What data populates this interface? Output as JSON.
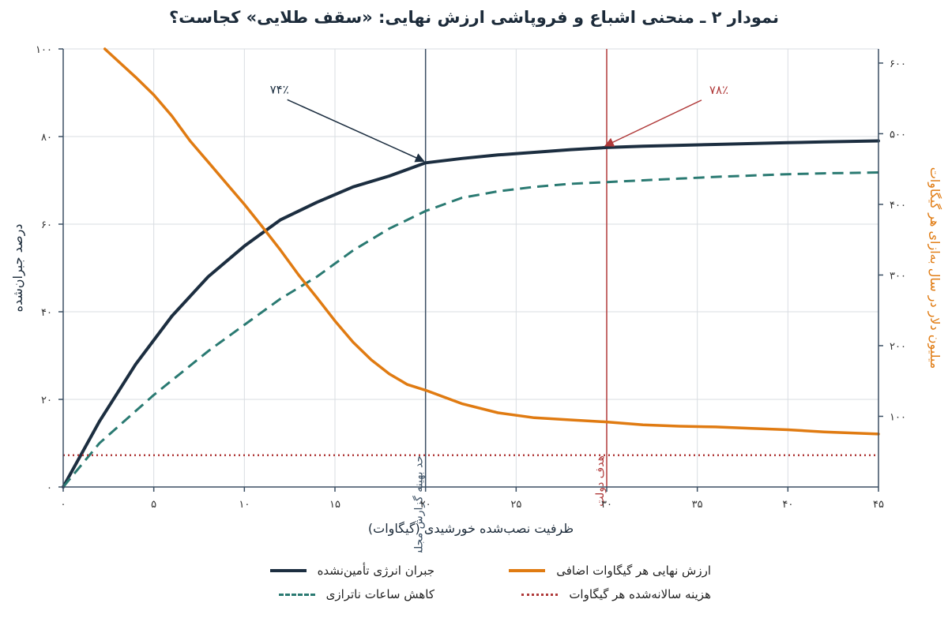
{
  "title": "نمودار ۲ ـ منحنی اشباع و فروپاشی ارزش نهایی: «سقف طلایی» کجاست؟",
  "colors": {
    "navy": "#1c2e40",
    "teal": "#2a7a72",
    "orange": "#e07b12",
    "red": "#b03a3a",
    "ref_line": "#3b4f63",
    "grid": "#d9dde2"
  },
  "chart_data": {
    "type": "line",
    "xlabel": "ظرفیت نصب‌شده خورشیدی (گیگاوات)",
    "ylabel_left": "درصد جبران‌شده",
    "ylabel_right": "میلیون دلار در سال به‌ازای هر گیگاوات",
    "xlim": [
      0,
      45
    ],
    "ylim_left": [
      0,
      100
    ],
    "ylim_right": [
      0,
      620
    ],
    "x_ticks": [
      0,
      5,
      10,
      15,
      20,
      25,
      30,
      35,
      40,
      45
    ],
    "x_tick_labels": [
      "۰",
      "۵",
      "۱۰",
      "۱۵",
      "۲۰",
      "۲۵",
      "۳۰",
      "۳۵",
      "۴۰",
      "۴۵"
    ],
    "y_left_ticks": [
      0,
      20,
      40,
      60,
      80,
      100
    ],
    "y_left_tick_labels": [
      "۰",
      "۲۰",
      "۴۰",
      "۶۰",
      "۸۰",
      "۱۰۰"
    ],
    "y_right_ticks": [
      100,
      200,
      300,
      400,
      500,
      600
    ],
    "y_right_tick_labels": [
      "۱۰۰",
      "۲۰۰",
      "۳۰۰",
      "۴۰۰",
      "۵۰۰",
      "۶۰۰"
    ],
    "grid": true,
    "series": [
      {
        "name": "جبران انرژی تأمین‌نشده",
        "axis": "left",
        "style": "solid",
        "color": "#1c2e40",
        "points": [
          [
            0,
            0
          ],
          [
            2,
            15
          ],
          [
            4,
            28
          ],
          [
            6,
            39
          ],
          [
            8,
            48
          ],
          [
            10,
            55
          ],
          [
            12,
            61
          ],
          [
            14,
            65
          ],
          [
            16,
            68.5
          ],
          [
            18,
            71
          ],
          [
            20,
            74
          ],
          [
            22,
            75
          ],
          [
            24,
            75.8
          ],
          [
            26,
            76.4
          ],
          [
            28,
            77
          ],
          [
            30,
            77.5
          ],
          [
            32,
            77.8
          ],
          [
            34,
            78
          ],
          [
            36,
            78.2
          ],
          [
            38,
            78.4
          ],
          [
            40,
            78.6
          ],
          [
            42,
            78.8
          ],
          [
            45,
            79
          ]
        ]
      },
      {
        "name": "کاهش ساعات ناترازی",
        "axis": "left",
        "style": "dashed",
        "color": "#2a7a72",
        "points": [
          [
            0,
            0
          ],
          [
            2,
            10
          ],
          [
            5,
            21
          ],
          [
            8,
            31
          ],
          [
            10,
            37
          ],
          [
            12,
            43
          ],
          [
            14,
            48
          ],
          [
            16,
            54
          ],
          [
            18,
            59
          ],
          [
            20,
            63
          ],
          [
            22,
            66
          ],
          [
            24,
            67.5
          ],
          [
            26,
            68.5
          ],
          [
            28,
            69.2
          ],
          [
            30,
            69.6
          ],
          [
            32,
            70
          ],
          [
            34,
            70.4
          ],
          [
            36,
            70.8
          ],
          [
            38,
            71.1
          ],
          [
            40,
            71.4
          ],
          [
            42,
            71.6
          ],
          [
            45,
            71.8
          ]
        ]
      },
      {
        "name": "ارزش نهایی هر گیگاوات اضافی",
        "axis": "right",
        "style": "solid",
        "color": "#e07b12",
        "points": [
          [
            2.3,
            620
          ],
          [
            4,
            580
          ],
          [
            5,
            555
          ],
          [
            6,
            525
          ],
          [
            7,
            490
          ],
          [
            8,
            460
          ],
          [
            9,
            430
          ],
          [
            10,
            400
          ],
          [
            11,
            368
          ],
          [
            12,
            335
          ],
          [
            13,
            300
          ],
          [
            14,
            268
          ],
          [
            15,
            235
          ],
          [
            16,
            205
          ],
          [
            17,
            180
          ],
          [
            18,
            160
          ],
          [
            19,
            145
          ],
          [
            20,
            137
          ],
          [
            22,
            118
          ],
          [
            24,
            105
          ],
          [
            26,
            98
          ],
          [
            28,
            95
          ],
          [
            30,
            92
          ],
          [
            32,
            88
          ],
          [
            34,
            86
          ],
          [
            36,
            85
          ],
          [
            38,
            83
          ],
          [
            40,
            81
          ],
          [
            42,
            78
          ],
          [
            45,
            75
          ]
        ]
      },
      {
        "name": "هزینه سالانه‌شده هر گیگاوات",
        "axis": "right",
        "style": "dotted",
        "color": "#b03a3a",
        "points": [
          [
            0,
            45
          ],
          [
            45,
            45
          ]
        ]
      }
    ],
    "reference_lines": [
      {
        "x": 20,
        "label": "حد بهینه گزارش مجلس",
        "color": "#3b4f63"
      },
      {
        "x": 30,
        "label": "هدف دولت",
        "color": "#b03a3a"
      }
    ],
    "annotations": [
      {
        "text": "۷۴٪",
        "target_x": 20,
        "target_y": 74,
        "color": "#1c2e40"
      },
      {
        "text": "۷۸٪",
        "target_x": 30,
        "target_y": 77.5,
        "color": "#b03a3a"
      }
    ]
  },
  "legend": [
    {
      "label": "جبران انرژی تأمین‌نشده",
      "style": "solid",
      "color": "#1c2e40"
    },
    {
      "label": "ارزش نهایی هر گیگاوات اضافی",
      "style": "solid",
      "color": "#e07b12"
    },
    {
      "label": "کاهش ساعات ناترازی",
      "style": "dashed",
      "color": "#2a7a72"
    },
    {
      "label": "هزینه سالانه‌شده هر گیگاوات",
      "style": "dotted",
      "color": "#b03a3a"
    }
  ]
}
